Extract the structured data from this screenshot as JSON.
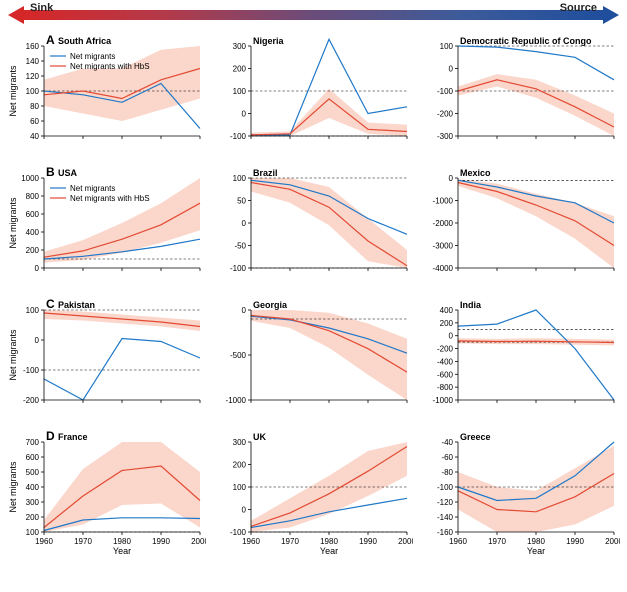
{
  "gradient": {
    "left_label": "Sink",
    "right_label": "Source",
    "left_color": "#d62728",
    "right_color": "#1f4e9c",
    "stops": [
      "#d62728",
      "#b23a4a",
      "#6a4c7a",
      "#3d5b9a",
      "#1f4e9c"
    ]
  },
  "colors": {
    "series_net": "#1f78c8",
    "series_hbs": "#e34a33",
    "band": "rgba(247,180,160,0.55)",
    "axis": "#000000",
    "dash": "#000000"
  },
  "line_width": 1.2,
  "x": {
    "label": "Year",
    "min": 1960,
    "max": 2000,
    "ticks": [
      1960,
      1970,
      1980,
      1990,
      2000
    ]
  },
  "y_label": "Net migrants",
  "legend": {
    "net": "Net migrants",
    "hbs": "Net migrants with HbS"
  },
  "rows": [
    {
      "letter": "A",
      "show_legend": true,
      "panels": [
        {
          "title": "South Africa",
          "y": {
            "min": 40,
            "max": 160,
            "ticks": [
              40,
              60,
              80,
              100,
              120,
              140,
              160
            ]
          },
          "dash_lines": [
            100
          ],
          "band": [
            [
              1960,
              80,
              115
            ],
            [
              1970,
              70,
              130
            ],
            [
              1980,
              60,
              130
            ],
            [
              1990,
              75,
              155
            ],
            [
              2000,
              90,
              160
            ]
          ],
          "net": [
            [
              1960,
              100
            ],
            [
              1970,
              95
            ],
            [
              1980,
              85
            ],
            [
              1990,
              110
            ],
            [
              2000,
              50
            ]
          ],
          "hbs": [
            [
              1960,
              95
            ],
            [
              1970,
              100
            ],
            [
              1980,
              90
            ],
            [
              1990,
              115
            ],
            [
              2000,
              130
            ]
          ]
        },
        {
          "title": "Nigeria",
          "y": {
            "min": -100,
            "max": 300,
            "ticks": [
              -100,
              0,
              100,
              200,
              300
            ]
          },
          "dash_lines": [
            -100,
            100
          ],
          "band": [
            [
              1960,
              -100,
              -85
            ],
            [
              1970,
              -100,
              -80
            ],
            [
              1980,
              -20,
              110
            ],
            [
              1990,
              -90,
              -40
            ],
            [
              2000,
              -100,
              -50
            ]
          ],
          "net": [
            [
              1960,
              -95
            ],
            [
              1970,
              -95
            ],
            [
              1980,
              330
            ],
            [
              1990,
              0
            ],
            [
              2000,
              30
            ]
          ],
          "hbs": [
            [
              1960,
              -95
            ],
            [
              1970,
              -90
            ],
            [
              1980,
              65
            ],
            [
              1990,
              -70
            ],
            [
              2000,
              -80
            ]
          ]
        },
        {
          "title": "Democratic Republic of Congo",
          "y": {
            "min": -300,
            "max": 100,
            "ticks": [
              -300,
              -200,
              -100,
              0,
              100
            ]
          },
          "dash_lines": [
            -100,
            100
          ],
          "band": [
            [
              1960,
              -120,
              -80
            ],
            [
              1970,
              -80,
              -25
            ],
            [
              1980,
              -130,
              -50
            ],
            [
              1990,
              -210,
              -120
            ],
            [
              2000,
              -300,
              -200
            ]
          ],
          "net": [
            [
              1960,
              100
            ],
            [
              1970,
              95
            ],
            [
              1980,
              75
            ],
            [
              1990,
              50
            ],
            [
              2000,
              -50
            ]
          ],
          "hbs": [
            [
              1960,
              -100
            ],
            [
              1970,
              -50
            ],
            [
              1980,
              -90
            ],
            [
              1990,
              -170
            ],
            [
              2000,
              -260
            ]
          ]
        }
      ]
    },
    {
      "letter": "B",
      "show_legend": true,
      "panels": [
        {
          "title": "USA",
          "y": {
            "min": 0,
            "max": 1000,
            "ticks": [
              0,
              200,
              400,
              600,
              800,
              1000
            ]
          },
          "dash_lines": [
            100
          ],
          "band": [
            [
              1960,
              60,
              180
            ],
            [
              1970,
              90,
              310
            ],
            [
              1980,
              170,
              500
            ],
            [
              1990,
              280,
              720
            ],
            [
              2000,
              420,
              1000
            ]
          ],
          "net": [
            [
              1960,
              100
            ],
            [
              1970,
              130
            ],
            [
              1980,
              180
            ],
            [
              1990,
              240
            ],
            [
              2000,
              320
            ]
          ],
          "hbs": [
            [
              1960,
              120
            ],
            [
              1970,
              190
            ],
            [
              1980,
              320
            ],
            [
              1990,
              480
            ],
            [
              2000,
              720
            ]
          ]
        },
        {
          "title": "Brazil",
          "y": {
            "min": -100,
            "max": 100,
            "ticks": [
              -100,
              -50,
              0,
              50,
              100
            ]
          },
          "dash_lines": [
            -100,
            100
          ],
          "band": [
            [
              1960,
              70,
              100
            ],
            [
              1970,
              45,
              100
            ],
            [
              1980,
              -5,
              80
            ],
            [
              1990,
              -85,
              10
            ],
            [
              2000,
              -100,
              -60
            ]
          ],
          "net": [
            [
              1960,
              95
            ],
            [
              1970,
              85
            ],
            [
              1980,
              60
            ],
            [
              1990,
              10
            ],
            [
              2000,
              -25
            ]
          ],
          "hbs": [
            [
              1960,
              90
            ],
            [
              1970,
              75
            ],
            [
              1980,
              35
            ],
            [
              1990,
              -40
            ],
            [
              2000,
              -95
            ]
          ]
        },
        {
          "title": "Mexico",
          "y": {
            "min": -4000,
            "max": 0,
            "ticks": [
              -4000,
              -3000,
              -2000,
              -1000,
              0
            ]
          },
          "dash_lines": [
            -100
          ],
          "band": [
            [
              1960,
              -350,
              -50
            ],
            [
              1970,
              -900,
              -250
            ],
            [
              1980,
              -1700,
              -700
            ],
            [
              1990,
              -2700,
              -1100
            ],
            [
              2000,
              -4000,
              -1700
            ]
          ],
          "net": [
            [
              1960,
              -100
            ],
            [
              1970,
              -400
            ],
            [
              1980,
              -800
            ],
            [
              1990,
              -1100
            ],
            [
              2000,
              -2000
            ]
          ],
          "hbs": [
            [
              1960,
              -200
            ],
            [
              1970,
              -600
            ],
            [
              1980,
              -1200
            ],
            [
              1990,
              -1900
            ],
            [
              2000,
              -3000
            ]
          ]
        }
      ]
    },
    {
      "letter": "C",
      "show_legend": false,
      "panels": [
        {
          "title": "Pakistan",
          "y": {
            "min": -200,
            "max": 100,
            "ticks": [
              -200,
              -100,
              0,
              100
            ]
          },
          "dash_lines": [
            -100,
            100
          ],
          "band": [
            [
              1960,
              70,
              100
            ],
            [
              1970,
              65,
              95
            ],
            [
              1980,
              55,
              85
            ],
            [
              1990,
              45,
              75
            ],
            [
              2000,
              30,
              65
            ]
          ],
          "net": [
            [
              1960,
              -130
            ],
            [
              1970,
              -200
            ],
            [
              1980,
              5
            ],
            [
              1990,
              -5
            ],
            [
              2000,
              -60
            ]
          ],
          "hbs": [
            [
              1960,
              90
            ],
            [
              1970,
              80
            ],
            [
              1980,
              70
            ],
            [
              1990,
              60
            ],
            [
              2000,
              45
            ]
          ]
        },
        {
          "title": "Georgia",
          "y": {
            "min": -1000,
            "max": 0,
            "ticks": [
              -1000,
              -500,
              0
            ]
          },
          "dash_lines": [
            -100
          ],
          "band": [
            [
              1960,
              -120,
              0
            ],
            [
              1970,
              -200,
              0
            ],
            [
              1980,
              -420,
              -30
            ],
            [
              1990,
              -720,
              -150
            ],
            [
              2000,
              -1050,
              -320
            ]
          ],
          "net": [
            [
              1960,
              -70
            ],
            [
              1970,
              -110
            ],
            [
              1980,
              -200
            ],
            [
              1990,
              -320
            ],
            [
              2000,
              -480
            ]
          ],
          "hbs": [
            [
              1960,
              -60
            ],
            [
              1970,
              -100
            ],
            [
              1980,
              -230
            ],
            [
              1990,
              -430
            ],
            [
              2000,
              -690
            ]
          ]
        },
        {
          "title": "India",
          "y": {
            "min": -1000,
            "max": 400,
            "ticks": [
              -1000,
              -800,
              -600,
              -400,
              -200,
              0,
              200,
              400
            ]
          },
          "dash_lines": [
            -100,
            100
          ],
          "band": [
            [
              1960,
              -120,
              -40
            ],
            [
              1970,
              -130,
              -50
            ],
            [
              1980,
              -130,
              -40
            ],
            [
              1990,
              -140,
              -50
            ],
            [
              2000,
              -150,
              -60
            ]
          ],
          "net": [
            [
              1960,
              150
            ],
            [
              1970,
              180
            ],
            [
              1980,
              400
            ],
            [
              1990,
              -200
            ],
            [
              2000,
              -1000
            ]
          ],
          "hbs": [
            [
              1960,
              -80
            ],
            [
              1970,
              -90
            ],
            [
              1980,
              -85
            ],
            [
              1990,
              -95
            ],
            [
              2000,
              -105
            ]
          ]
        }
      ]
    },
    {
      "letter": "D",
      "show_legend": false,
      "panels": [
        {
          "title": "France",
          "y": {
            "min": 100,
            "max": 700,
            "ticks": [
              100,
              200,
              300,
              400,
              500,
              600,
              700
            ]
          },
          "dash_lines": [
            100
          ],
          "band": [
            [
              1960,
              100,
              180
            ],
            [
              1970,
              150,
              520
            ],
            [
              1980,
              280,
              720
            ],
            [
              1990,
              290,
              730
            ],
            [
              2000,
              130,
              500
            ]
          ],
          "net": [
            [
              1960,
              110
            ],
            [
              1970,
              180
            ],
            [
              1980,
              195
            ],
            [
              1990,
              195
            ],
            [
              2000,
              190
            ]
          ],
          "hbs": [
            [
              1960,
              130
            ],
            [
              1970,
              340
            ],
            [
              1980,
              510
            ],
            [
              1990,
              540
            ],
            [
              2000,
              310
            ]
          ]
        },
        {
          "title": "UK",
          "y": {
            "min": -100,
            "max": 300,
            "ticks": [
              -100,
              0,
              100,
              200,
              300
            ]
          },
          "dash_lines": [
            -100,
            100
          ],
          "band": [
            [
              1960,
              -100,
              -50
            ],
            [
              1970,
              -80,
              50
            ],
            [
              1980,
              -20,
              150
            ],
            [
              1990,
              60,
              260
            ],
            [
              2000,
              150,
              360
            ]
          ],
          "net": [
            [
              1960,
              -80
            ],
            [
              1970,
              -50
            ],
            [
              1980,
              -10
            ],
            [
              1990,
              20
            ],
            [
              2000,
              50
            ]
          ],
          "hbs": [
            [
              1960,
              -75
            ],
            [
              1970,
              -15
            ],
            [
              1980,
              70
            ],
            [
              1990,
              170
            ],
            [
              2000,
              280
            ]
          ]
        },
        {
          "title": "Greece",
          "y": {
            "min": -160,
            "max": -40,
            "ticks": [
              -160,
              -140,
              -120,
              -100,
              -80,
              -60,
              -40
            ]
          },
          "dash_lines": [
            -100
          ],
          "band": [
            [
              1960,
              -130,
              -80
            ],
            [
              1970,
              -160,
              -100
            ],
            [
              1980,
              -160,
              -105
            ],
            [
              1990,
              -150,
              -75
            ],
            [
              2000,
              -125,
              -45
            ]
          ],
          "net": [
            [
              1960,
              -100
            ],
            [
              1970,
              -118
            ],
            [
              1980,
              -115
            ],
            [
              1990,
              -85
            ],
            [
              2000,
              -40
            ]
          ],
          "hbs": [
            [
              1960,
              -105
            ],
            [
              1970,
              -130
            ],
            [
              1980,
              -133
            ],
            [
              1990,
              -113
            ],
            [
              2000,
              -82
            ]
          ]
        }
      ]
    }
  ]
}
